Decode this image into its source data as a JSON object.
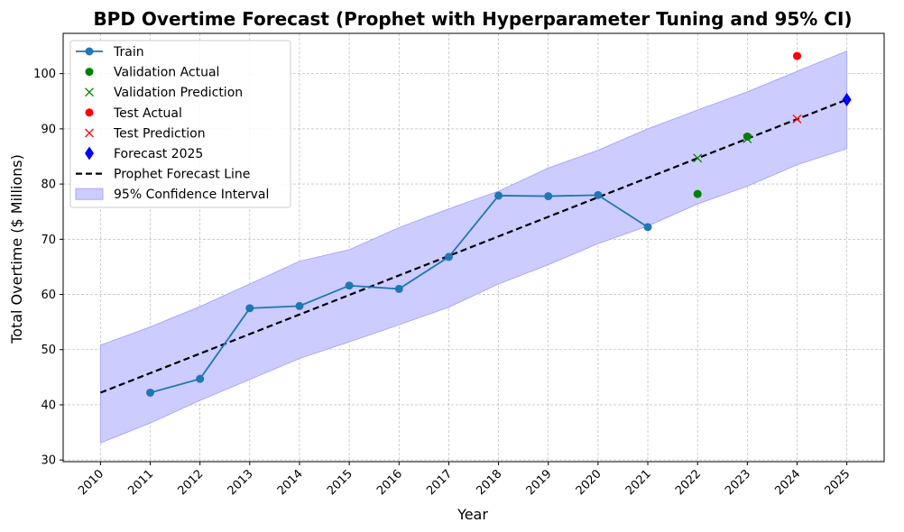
{
  "chart_data": {
    "type": "line",
    "title": "BPD Overtime Forecast (Prophet with Hyperparameter Tuning and 95% CI)",
    "xlabel": "Year",
    "ylabel": "Total Overtime ($ Millions)",
    "xlim": [
      2009.25,
      2025.75
    ],
    "ylim": [
      29.7,
      107.3
    ],
    "x_ticks": [
      2010,
      2011,
      2012,
      2013,
      2014,
      2015,
      2016,
      2017,
      2018,
      2019,
      2020,
      2021,
      2022,
      2023,
      2024,
      2025
    ],
    "y_ticks": [
      30,
      40,
      50,
      60,
      70,
      80,
      90,
      100
    ],
    "grid": true,
    "legend_position": "upper-left",
    "colors": {
      "train": "#1f77b4",
      "validation": "#008000",
      "test": "#ff0000",
      "forecast": "#0000ff",
      "trend": "#000000",
      "ci_fill": "#ccccff",
      "ci_edge": "#a9a9f5"
    },
    "series": [
      {
        "name": "Train",
        "kind": "line-marker",
        "x": [
          2011,
          2012,
          2013,
          2014,
          2015,
          2016,
          2017,
          2018,
          2019,
          2020,
          2021
        ],
        "y": [
          42.2,
          44.7,
          57.5,
          57.9,
          61.6,
          61.0,
          66.8,
          77.9,
          77.8,
          78.0,
          72.2
        ]
      },
      {
        "name": "Validation Actual",
        "kind": "dot",
        "x": [
          2022,
          2023
        ],
        "y": [
          78.2,
          88.6
        ]
      },
      {
        "name": "Validation Prediction",
        "kind": "x",
        "x": [
          2022,
          2023
        ],
        "y": [
          84.7,
          88.2
        ]
      },
      {
        "name": "Test Actual",
        "kind": "dot",
        "x": [
          2024
        ],
        "y": [
          103.2
        ]
      },
      {
        "name": "Test Prediction",
        "kind": "x",
        "x": [
          2024
        ],
        "y": [
          91.8
        ]
      },
      {
        "name": "Forecast 2025",
        "kind": "diamond",
        "x": [
          2025
        ],
        "y": [
          95.3
        ]
      },
      {
        "name": "Prophet Forecast Line",
        "kind": "dashed",
        "x": [
          2010,
          2025
        ],
        "y": [
          42.2,
          95.3
        ]
      },
      {
        "name": "95% Confidence Interval",
        "kind": "band",
        "x": [
          2010,
          2011,
          2012,
          2013,
          2014,
          2015,
          2016,
          2017,
          2018,
          2019,
          2020,
          2021,
          2022,
          2023,
          2024,
          2025
        ],
        "upper": [
          50.8,
          54.1,
          57.8,
          61.9,
          66.0,
          68.1,
          72.1,
          75.5,
          78.7,
          82.9,
          86.1,
          90.0,
          93.4,
          96.7,
          100.4,
          104.1
        ],
        "lower": [
          33.1,
          36.7,
          40.8,
          44.6,
          48.4,
          51.4,
          54.5,
          57.7,
          61.9,
          65.4,
          69.2,
          72.4,
          76.4,
          79.6,
          83.5,
          86.4
        ]
      }
    ]
  }
}
